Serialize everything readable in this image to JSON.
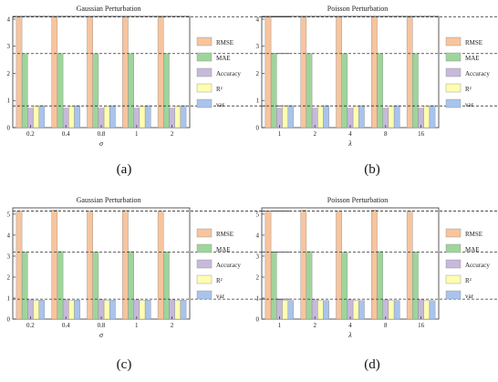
{
  "figure": {
    "panels": [
      {
        "caption": "(a)"
      },
      {
        "caption": "(b)"
      },
      {
        "caption": "(c)"
      },
      {
        "caption": "(d)"
      }
    ]
  },
  "series_colors": {
    "RMSE": "#f7c49d",
    "MAE": "#9ed59b",
    "Accuracy": "#c6b9dc",
    "R2": "#fffdb0",
    "var": "#a9c4ec"
  },
  "chart_data": [
    {
      "type": "bar",
      "title": "Gaussian Perturbation",
      "xlabel": "σ",
      "ylabel": "",
      "categories": [
        "0.2",
        "0.4",
        "0.8",
        "1",
        "2"
      ],
      "ylim": [
        0,
        4.1
      ],
      "yticks": [
        "0",
        "1",
        "2",
        "3",
        "4"
      ],
      "grid": false,
      "legend": "right",
      "reference_lines": [
        4.08,
        2.73,
        0.8
      ],
      "series": [
        {
          "name": "RMSE",
          "values": [
            4.08,
            4.08,
            4.08,
            4.08,
            4.08
          ]
        },
        {
          "name": "MAE",
          "values": [
            2.73,
            2.73,
            2.73,
            2.73,
            2.73
          ]
        },
        {
          "name": "Accuracy",
          "values": [
            0.72,
            0.72,
            0.72,
            0.72,
            0.72
          ]
        },
        {
          "name": "R²",
          "values": [
            0.8,
            0.8,
            0.8,
            0.8,
            0.8
          ]
        },
        {
          "name": "var",
          "values": [
            0.81,
            0.81,
            0.81,
            0.81,
            0.81
          ]
        }
      ]
    },
    {
      "type": "bar",
      "title": "Poisson Perturbation",
      "xlabel": "λ",
      "ylabel": "",
      "categories": [
        "1",
        "2",
        "4",
        "8",
        "16"
      ],
      "ylim": [
        0,
        4.1
      ],
      "yticks": [
        "0",
        "1",
        "2",
        "3",
        "4"
      ],
      "grid": false,
      "legend": "right",
      "reference_lines": [
        4.08,
        2.73,
        0.8
      ],
      "series": [
        {
          "name": "RMSE",
          "values": [
            4.08,
            4.08,
            4.08,
            4.08,
            4.08
          ]
        },
        {
          "name": "MAE",
          "values": [
            2.73,
            2.73,
            2.73,
            2.73,
            2.73
          ]
        },
        {
          "name": "Accuracy",
          "values": [
            0.72,
            0.72,
            0.72,
            0.72,
            0.72
          ]
        },
        {
          "name": "R²",
          "values": [
            0.8,
            0.8,
            0.8,
            0.8,
            0.8
          ]
        },
        {
          "name": "var",
          "values": [
            0.81,
            0.81,
            0.81,
            0.81,
            0.81
          ]
        }
      ]
    },
    {
      "type": "bar",
      "title": "Gaussian Perturbation",
      "xlabel": "σ",
      "ylabel": "",
      "categories": [
        "0.2",
        "0.4",
        "0.8",
        "1",
        "2"
      ],
      "ylim": [
        0,
        5.3
      ],
      "yticks": [
        "0",
        "1",
        "2",
        "3",
        "4",
        "5"
      ],
      "grid": false,
      "legend": "right",
      "reference_lines": [
        5.15,
        3.2,
        0.95
      ],
      "series": [
        {
          "name": "RMSE",
          "values": [
            5.15,
            5.2,
            5.15,
            5.18,
            5.15
          ]
        },
        {
          "name": "MAE",
          "values": [
            3.2,
            3.22,
            3.2,
            3.22,
            3.2
          ]
        },
        {
          "name": "Accuracy",
          "values": [
            0.92,
            0.92,
            0.92,
            0.92,
            0.92
          ]
        },
        {
          "name": "R²",
          "values": [
            0.88,
            0.88,
            0.88,
            0.88,
            0.88
          ]
        },
        {
          "name": "var",
          "values": [
            0.9,
            0.9,
            0.9,
            0.9,
            0.9
          ]
        }
      ]
    },
    {
      "type": "bar",
      "title": "Poisson Perturbation",
      "xlabel": "λ",
      "ylabel": "",
      "categories": [
        "1",
        "2",
        "4",
        "8",
        "16"
      ],
      "ylim": [
        0,
        5.3
      ],
      "yticks": [
        "0",
        "1",
        "2",
        "3",
        "4",
        "5"
      ],
      "grid": false,
      "legend": "right",
      "reference_lines": [
        5.15,
        3.2,
        0.95
      ],
      "series": [
        {
          "name": "RMSE",
          "values": [
            5.15,
            5.2,
            5.15,
            5.2,
            5.15
          ]
        },
        {
          "name": "MAE",
          "values": [
            3.18,
            3.22,
            3.18,
            3.22,
            3.2
          ]
        },
        {
          "name": "Accuracy",
          "values": [
            0.92,
            0.92,
            0.92,
            0.92,
            0.92
          ]
        },
        {
          "name": "R²",
          "values": [
            0.88,
            0.88,
            0.88,
            0.88,
            0.88
          ]
        },
        {
          "name": "var",
          "values": [
            0.88,
            0.88,
            0.88,
            0.88,
            0.88
          ]
        }
      ]
    }
  ]
}
